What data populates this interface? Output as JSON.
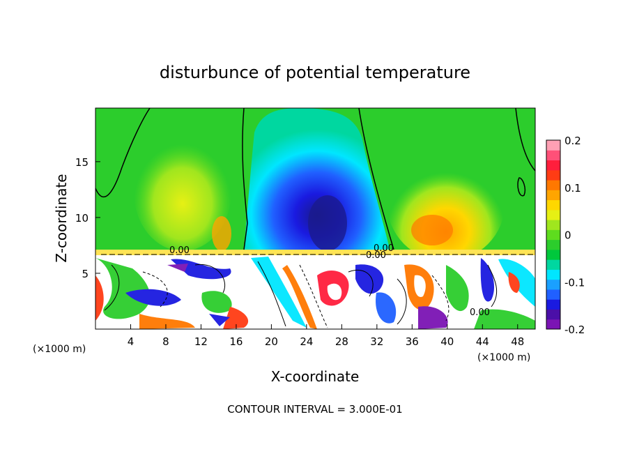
{
  "chart_data": {
    "type": "heatmap",
    "title": "disturbunce of potential temperature",
    "xlabel": "X-coordinate",
    "ylabel": "Z-coordinate",
    "x_unit_left": "(×1000 m)",
    "x_unit_right": "(×1000 m)",
    "xlim": [
      0,
      50
    ],
    "ylim": [
      0,
      19.8
    ],
    "x_ticks": [
      4,
      8,
      12,
      16,
      20,
      24,
      28,
      32,
      36,
      40,
      44,
      48
    ],
    "y_ticks": [
      5,
      10,
      15
    ],
    "colorbar": {
      "range": [
        -0.2,
        0.2
      ],
      "tick_labels": [
        "0.2",
        "0.1",
        "0",
        "-0.1",
        "-0.2"
      ],
      "tick_values": [
        0.2,
        0.1,
        0,
        -0.1,
        -0.2
      ],
      "colors": [
        "#7b14b4",
        "#4b0fa8",
        "#1a1ae0",
        "#2060ff",
        "#1aa0ff",
        "#00e6ff",
        "#00d7a0",
        "#00c83c",
        "#2ccd2c",
        "#5edc1e",
        "#a0e61e",
        "#e6f014",
        "#ffd700",
        "#ffa500",
        "#ff7800",
        "#ff3c14",
        "#ff1e3c",
        "#ff5078",
        "#ffa0b4"
      ]
    },
    "contour_labels": [
      "0.00",
      "0.00",
      "0.00",
      "0.00"
    ],
    "footer": "CONTOUR INTERVAL = 3.000E-01"
  }
}
